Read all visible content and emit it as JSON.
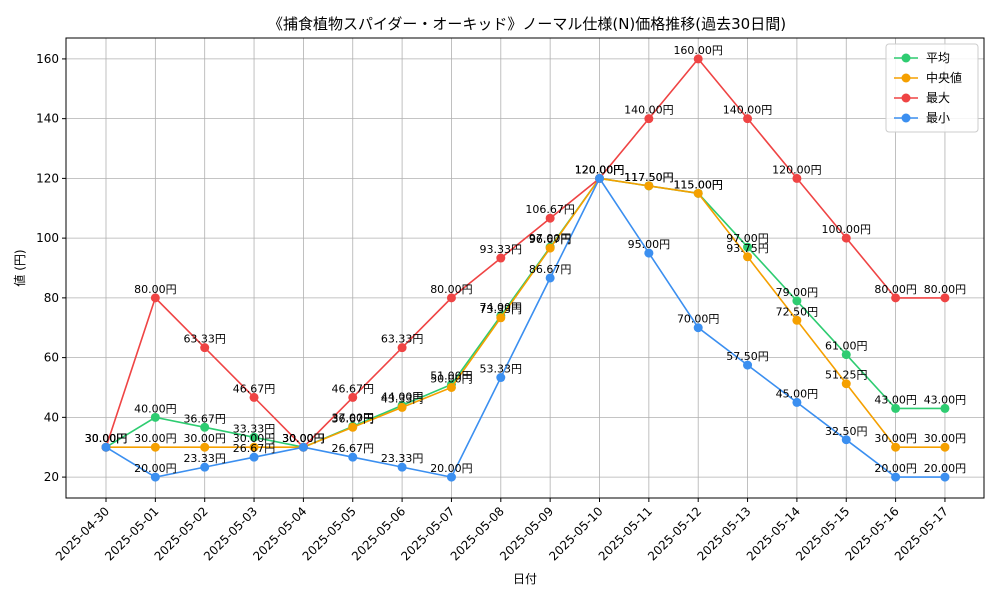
{
  "chart_data": {
    "type": "line",
    "title": "《捕食植物スパイダー・オーキッド》ノーマル仕様(N)価格推移(過去30日間)",
    "xlabel": "日付",
    "ylabel": "値 (円)",
    "categories": [
      "2025-04-30",
      "2025-05-01",
      "2025-05-02",
      "2025-05-03",
      "2025-05-04",
      "2025-05-05",
      "2025-05-06",
      "2025-05-07",
      "2025-05-08",
      "2025-05-09",
      "2025-05-10",
      "2025-05-11",
      "2025-05-12",
      "2025-05-13",
      "2025-05-14",
      "2025-05-15",
      "2025-05-16",
      "2025-05-17"
    ],
    "ylim": [
      13,
      167
    ],
    "yticks": [
      20,
      40,
      60,
      80,
      100,
      120,
      140,
      160
    ],
    "grid": true,
    "legend_position": "top-right",
    "label_suffix": "円",
    "series": [
      {
        "name": "平均",
        "color": "#2ecc71",
        "values": [
          30,
          40,
          36.67,
          33.33,
          30,
          37,
          44,
          51,
          74,
          97,
          120,
          117.5,
          115,
          97,
          79,
          61,
          43,
          43
        ]
      },
      {
        "name": "中央値",
        "color": "#f5a000",
        "values": [
          30,
          30,
          30,
          30,
          30,
          36.67,
          43.33,
          50,
          73.33,
          96.67,
          120,
          117.5,
          115,
          93.75,
          72.5,
          51.25,
          30,
          30
        ]
      },
      {
        "name": "最大",
        "color": "#ef4444",
        "values": [
          30,
          80,
          63.33,
          46.67,
          30,
          46.67,
          63.33,
          80,
          93.33,
          106.67,
          120,
          140,
          160,
          140,
          120,
          100,
          80,
          80
        ]
      },
      {
        "name": "最小",
        "color": "#3b8ff0",
        "values": [
          30,
          20,
          23.33,
          26.67,
          30,
          26.67,
          23.33,
          20,
          53.33,
          86.67,
          120,
          95,
          70,
          57.5,
          45,
          32.5,
          20,
          20
        ]
      }
    ]
  }
}
